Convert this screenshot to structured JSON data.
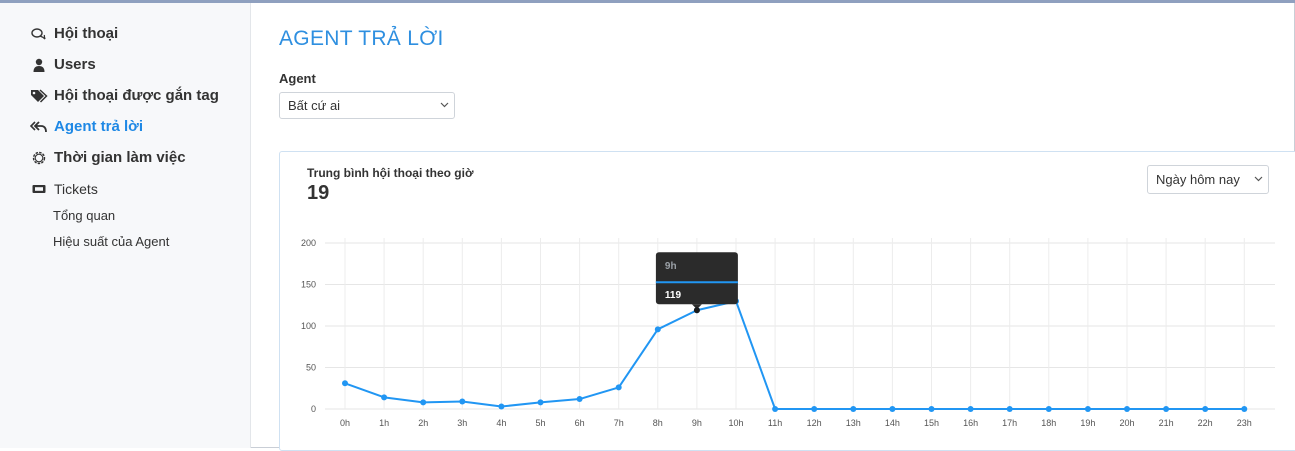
{
  "sidebar": {
    "items": [
      {
        "label": "Hội thoại",
        "icon": "chat-bubbles-icon",
        "active": false
      },
      {
        "label": "Users",
        "icon": "user-icon",
        "active": false
      },
      {
        "label": "Hội thoại được gắn tag",
        "icon": "tags-icon",
        "active": false
      },
      {
        "label": "Agent trả lời",
        "icon": "reply-all-icon",
        "active": true
      },
      {
        "label": "Thời gian làm việc",
        "icon": "gear-icon",
        "active": false
      },
      {
        "label": "Tickets",
        "icon": "ticket-icon",
        "active": false
      }
    ],
    "subitems": [
      {
        "label": "Tổng quan"
      },
      {
        "label": "Hiệu suất của Agent"
      }
    ]
  },
  "main": {
    "title": "AGENT TRẢ LỜI",
    "agent_label": "Agent",
    "agent_select": {
      "value": "Bất cứ ai"
    },
    "card": {
      "title": "Trung bình hội thoại theo giờ",
      "value": "19",
      "range_select": {
        "value": "Ngày hôm nay"
      }
    }
  },
  "colors": {
    "accent": "#1e88e5",
    "line": "#2196f3",
    "tooltip_bg": "#2b2b2b"
  },
  "chart_data": {
    "type": "line",
    "title": "Trung bình hội thoại theo giờ",
    "categories": [
      "0h",
      "1h",
      "2h",
      "3h",
      "4h",
      "5h",
      "6h",
      "7h",
      "8h",
      "9h",
      "10h",
      "11h",
      "12h",
      "13h",
      "14h",
      "15h",
      "16h",
      "17h",
      "18h",
      "19h",
      "20h",
      "21h",
      "22h",
      "23h"
    ],
    "series": [
      {
        "values": [
          31,
          14,
          8,
          9,
          3,
          8,
          12,
          26,
          96,
          119,
          130,
          0,
          0,
          0,
          0,
          0,
          0,
          0,
          0,
          0,
          0,
          0,
          0,
          0
        ]
      }
    ],
    "ylim": [
      0,
      200
    ],
    "yticks": [
      0,
      50,
      100,
      150,
      200
    ],
    "grid": true,
    "tooltip": {
      "label": "9h",
      "value": "119"
    }
  }
}
